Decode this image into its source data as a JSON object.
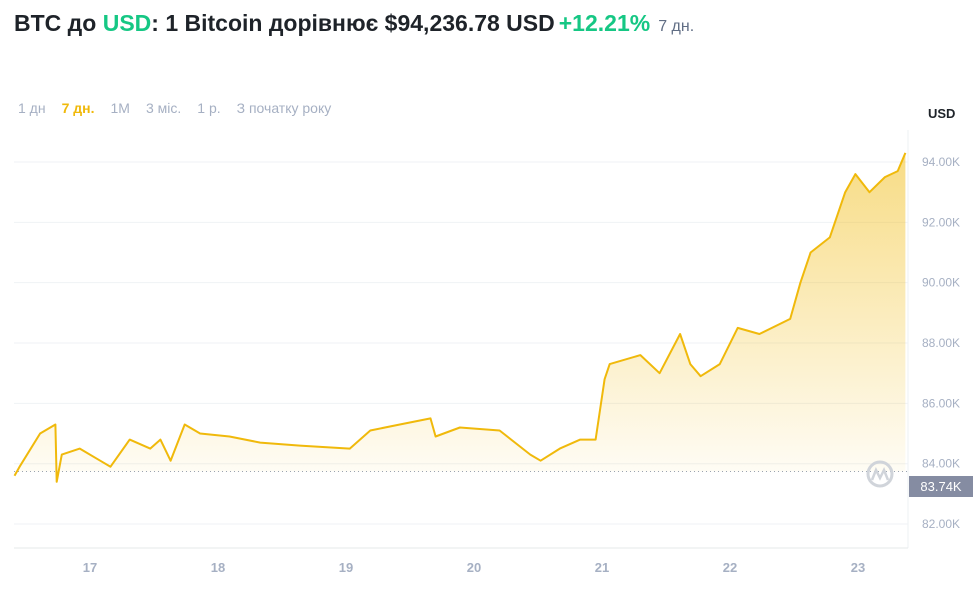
{
  "header": {
    "pair_prefix": "BTC до ",
    "currency": "USD",
    "sentence": ": 1 Bitcoin дорівнює $94,236.78 USD",
    "change": "+12.21%",
    "period": "7 дн."
  },
  "ranges": [
    {
      "label": "1 дн",
      "active": false
    },
    {
      "label": "7 дн.",
      "active": true
    },
    {
      "label": "1M",
      "active": false
    },
    {
      "label": "3 міс.",
      "active": false
    },
    {
      "label": "1 р.",
      "active": false
    },
    {
      "label": "З початку року",
      "active": false
    }
  ],
  "colors": {
    "line": "#f0b90b",
    "positive": "#16c784"
  },
  "chart_data": {
    "type": "area",
    "ylabel": "USD",
    "ylim": [
      81.6,
      95
    ],
    "xlim": [
      16.41,
      23.4
    ],
    "yticks": [
      82,
      84,
      86,
      88,
      90,
      92,
      94
    ],
    "ytick_labels": [
      "82.00K",
      "84.00K",
      "86.00K",
      "88.00K",
      "90.00K",
      "92.00K",
      "94.00K"
    ],
    "xticks": [
      17,
      18,
      19,
      20,
      21,
      22,
      23
    ],
    "xtick_labels": [
      "17",
      "18",
      "19",
      "20",
      "21",
      "22",
      "23"
    ],
    "reference_value": 83.74,
    "reference_label": "83.74K",
    "x": [
      16.41,
      16.45,
      16.61,
      16.73,
      16.74,
      16.78,
      16.92,
      17.08,
      17.16,
      17.31,
      17.47,
      17.55,
      17.63,
      17.74,
      17.86,
      18.09,
      18.33,
      18.64,
      19.03,
      19.19,
      19.42,
      19.66,
      19.7,
      19.89,
      20.2,
      20.44,
      20.52,
      20.67,
      20.83,
      20.95,
      21.02,
      21.06,
      21.3,
      21.45,
      21.61,
      21.69,
      21.77,
      21.92,
      22.06,
      22.23,
      22.47,
      22.55,
      22.63,
      22.78,
      22.9,
      22.98,
      23.09,
      23.21,
      23.31,
      23.37
    ],
    "y": [
      83.6,
      83.9,
      85.0,
      85.3,
      83.4,
      84.3,
      84.5,
      84.1,
      83.9,
      84.8,
      84.5,
      84.8,
      84.1,
      85.3,
      85.0,
      84.9,
      84.7,
      84.6,
      84.5,
      85.1,
      85.3,
      85.5,
      84.9,
      85.2,
      85.1,
      84.3,
      84.1,
      84.5,
      84.8,
      84.8,
      86.8,
      87.3,
      87.6,
      87.0,
      88.3,
      87.3,
      86.9,
      87.3,
      88.5,
      88.3,
      88.8,
      90.0,
      91.0,
      91.5,
      93.0,
      93.6,
      93.0,
      93.5,
      93.7,
      94.3
    ]
  }
}
